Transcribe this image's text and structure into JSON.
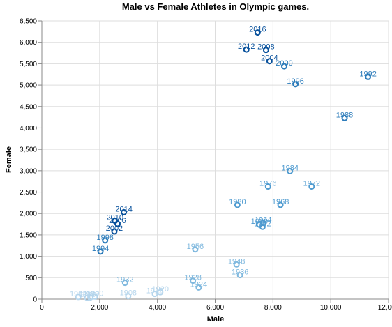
{
  "chart_data": {
    "type": "scatter",
    "title": "Male vs Female Athletes in Olympic games.",
    "xlabel": "Male",
    "ylabel": "Female",
    "xlim": [
      0,
      12000
    ],
    "ylim": [
      0,
      6500
    ],
    "x_ticks": [
      0,
      2000,
      4000,
      6000,
      8000,
      10000,
      12000
    ],
    "y_ticks": [
      0,
      500,
      1000,
      1500,
      2000,
      2500,
      3000,
      3500,
      4000,
      4500,
      5000,
      5500,
      6000,
      6500
    ],
    "grid": true,
    "colors": {
      "darkest": "#08519c",
      "dark": "#2b7bba",
      "mid": "#4f9bd0",
      "light": "#7fb8de",
      "lightest": "#b5d5ec"
    },
    "points": [
      {
        "label": "2016",
        "x": 7470,
        "y": 6230,
        "shade": "darkest"
      },
      {
        "label": "2012",
        "x": 7080,
        "y": 5830,
        "shade": "darkest"
      },
      {
        "label": "2008",
        "x": 7760,
        "y": 5820,
        "shade": "darkest"
      },
      {
        "label": "2004",
        "x": 7880,
        "y": 5560,
        "shade": "darkest"
      },
      {
        "label": "2000",
        "x": 8390,
        "y": 5440,
        "shade": "dark"
      },
      {
        "label": "1996",
        "x": 8780,
        "y": 5020,
        "shade": "dark"
      },
      {
        "label": "1992",
        "x": 11290,
        "y": 5190,
        "shade": "dark"
      },
      {
        "label": "1988",
        "x": 10480,
        "y": 4230,
        "shade": "dark"
      },
      {
        "label": "1984",
        "x": 8590,
        "y": 2990,
        "shade": "mid"
      },
      {
        "label": "1976",
        "x": 7830,
        "y": 2630,
        "shade": "mid"
      },
      {
        "label": "1972",
        "x": 9340,
        "y": 2630,
        "shade": "mid"
      },
      {
        "label": "1980",
        "x": 6770,
        "y": 2200,
        "shade": "mid"
      },
      {
        "label": "1968",
        "x": 8260,
        "y": 2200,
        "shade": "mid"
      },
      {
        "label": "1964",
        "x": 7660,
        "y": 1780,
        "shade": "mid"
      },
      {
        "label": "1960",
        "x": 7530,
        "y": 1740,
        "shade": "mid"
      },
      {
        "label": "1952",
        "x": 7640,
        "y": 1690,
        "shade": "mid"
      },
      {
        "label": "1956",
        "x": 5310,
        "y": 1160,
        "shade": "light"
      },
      {
        "label": "1948",
        "x": 6740,
        "y": 810,
        "shade": "light"
      },
      {
        "label": "1936",
        "x": 6860,
        "y": 560,
        "shade": "light"
      },
      {
        "label": "1928",
        "x": 5230,
        "y": 430,
        "shade": "light"
      },
      {
        "label": "1924",
        "x": 5430,
        "y": 270,
        "shade": "light"
      },
      {
        "label": "1932",
        "x": 2880,
        "y": 380,
        "shade": "light"
      },
      {
        "label": "1920",
        "x": 4100,
        "y": 160,
        "shade": "lightest"
      },
      {
        "label": "1912",
        "x": 3910,
        "y": 120,
        "shade": "lightest"
      },
      {
        "label": "1908",
        "x": 2990,
        "y": 70,
        "shade": "lightest"
      },
      {
        "label": "1900",
        "x": 1840,
        "y": 60,
        "shade": "lightest"
      },
      {
        "label": "1904",
        "x": 1260,
        "y": 50,
        "shade": "lightest"
      },
      {
        "label": "1906",
        "x": 1680,
        "y": 40,
        "shade": "lightest"
      },
      {
        "label": "1896",
        "x": 1570,
        "y": 30,
        "shade": "lightest"
      },
      {
        "label": "2014",
        "x": 2840,
        "y": 2030,
        "shade": "darkest"
      },
      {
        "label": "2010",
        "x": 2530,
        "y": 1830,
        "shade": "darkest"
      },
      {
        "label": "2006",
        "x": 2620,
        "y": 1760,
        "shade": "darkest"
      },
      {
        "label": "2002",
        "x": 2510,
        "y": 1580,
        "shade": "darkest"
      },
      {
        "label": "1998",
        "x": 2190,
        "y": 1370,
        "shade": "dark"
      },
      {
        "label": "1994",
        "x": 2030,
        "y": 1110,
        "shade": "dark"
      }
    ]
  }
}
